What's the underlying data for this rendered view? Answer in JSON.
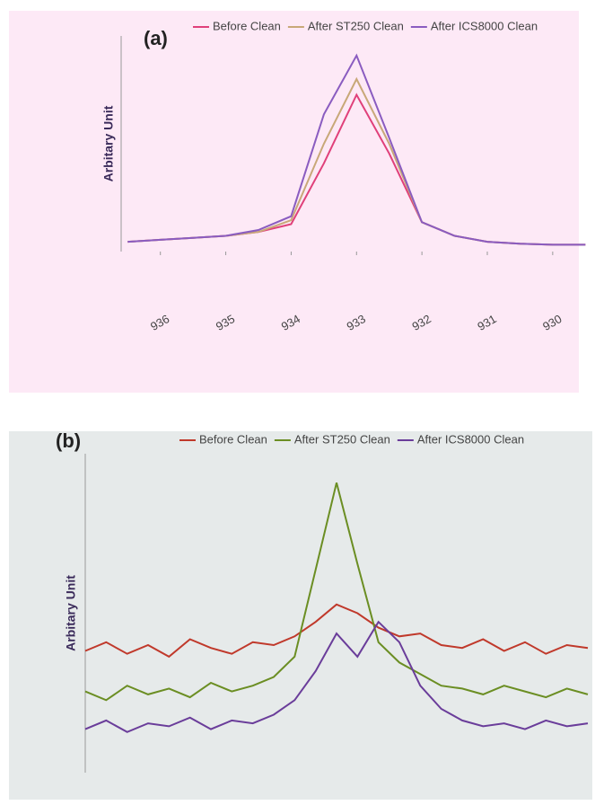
{
  "chart_data": [
    {
      "type": "line",
      "title": "(a)",
      "y_label": "Arbitary Unit",
      "x": [
        936.5,
        936,
        935.5,
        935,
        934.5,
        934,
        933.5,
        933,
        932.5,
        932,
        931.5,
        931,
        930.5,
        930,
        929.5
      ],
      "xlim": [
        936.6,
        929.6
      ],
      "xticks": [
        936,
        935,
        934,
        933,
        932,
        931,
        930
      ],
      "ylim": [
        0,
        110
      ],
      "series": [
        {
          "name": "Before Clean",
          "color": "#e0407a",
          "values": [
            5,
            6,
            7,
            8,
            10,
            14,
            45,
            80,
            50,
            15,
            8,
            5,
            4,
            3.5,
            3.5
          ]
        },
        {
          "name": "After ST250 Clean",
          "color": "#c8a878",
          "values": [
            5,
            6,
            7,
            8,
            10,
            16,
            55,
            88,
            55,
            15,
            8,
            5,
            4,
            3.5,
            3.5
          ]
        },
        {
          "name": "After ICS8000 Clean",
          "color": "#8a5cc0",
          "values": [
            5,
            6,
            7,
            8,
            11,
            18,
            70,
            100,
            58,
            15,
            8,
            5,
            4,
            3.5,
            3.5
          ]
        }
      ]
    },
    {
      "type": "line",
      "title": "(b)",
      "y_label": "Arbitary Unit",
      "x": [
        936,
        935.75,
        935.5,
        935.25,
        935,
        934.75,
        934.5,
        934.25,
        934,
        933.75,
        933.5,
        933.25,
        933,
        932.75,
        932.5,
        932.25,
        932,
        931.75,
        931.5,
        931.25,
        931,
        930.75,
        930.5,
        930.25,
        930
      ],
      "xlim": [
        936,
        930
      ],
      "ylim": [
        0,
        110
      ],
      "series": [
        {
          "name": "Before Clean",
          "color": "#c0392b",
          "values": [
            42,
            45,
            41,
            44,
            40,
            46,
            43,
            41,
            45,
            44,
            47,
            52,
            58,
            55,
            50,
            47,
            48,
            44,
            43,
            46,
            42,
            45,
            41,
            44,
            43
          ]
        },
        {
          "name": "After ST250 Clean",
          "color": "#6b8e23",
          "values": [
            28,
            25,
            30,
            27,
            29,
            26,
            31,
            28,
            30,
            33,
            40,
            70,
            100,
            72,
            45,
            38,
            34,
            30,
            29,
            27,
            30,
            28,
            26,
            29,
            27
          ]
        },
        {
          "name": "After ICS8000 Clean",
          "color": "#6a3d9a",
          "values": [
            15,
            18,
            14,
            17,
            16,
            19,
            15,
            18,
            17,
            20,
            25,
            35,
            48,
            40,
            52,
            45,
            30,
            22,
            18,
            16,
            17,
            15,
            18,
            16,
            17
          ]
        }
      ]
    }
  ]
}
